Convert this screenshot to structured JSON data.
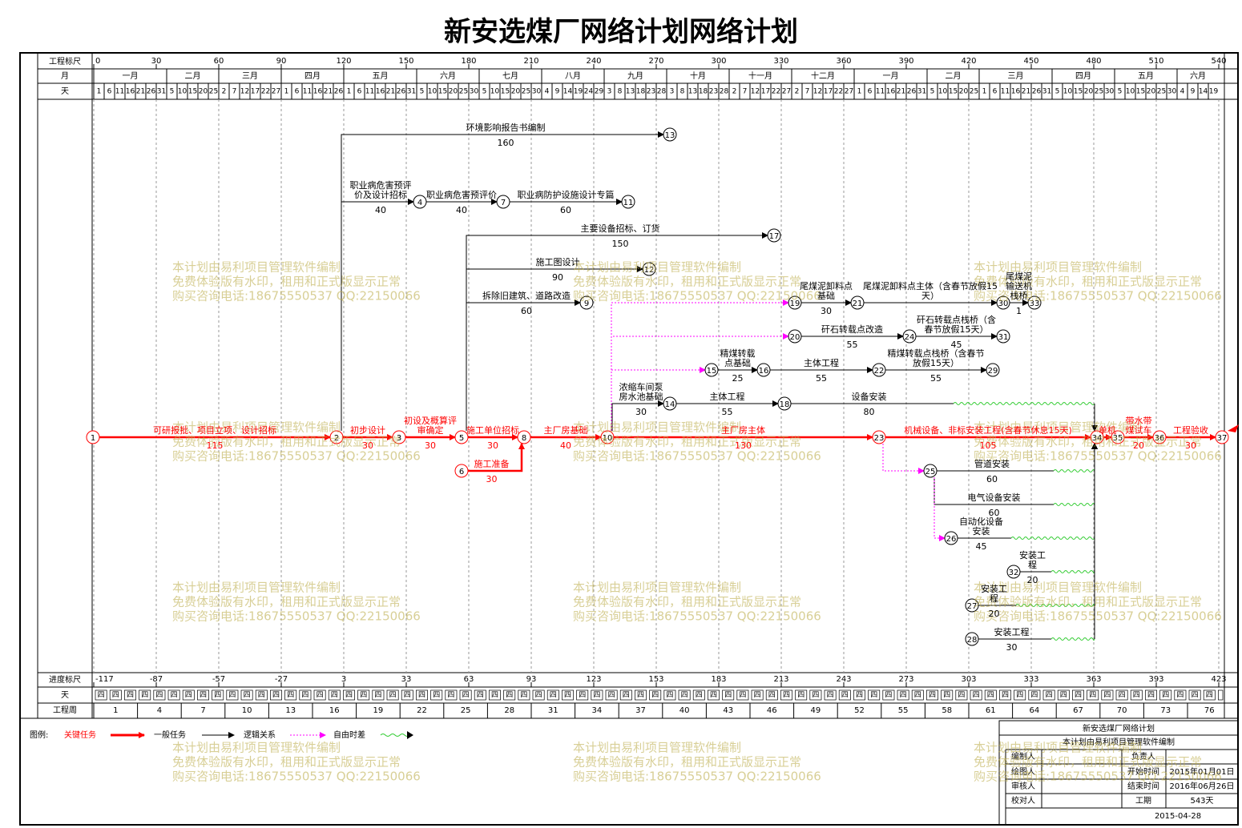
{
  "title": "新安选煤厂网络计划网络计划",
  "row_labels": {
    "scale": "工程标尺",
    "month": "月",
    "day": "天",
    "progress": "进度标尺",
    "weekday": "天",
    "week": "工程周"
  },
  "scale_ticks": [
    0,
    30,
    60,
    90,
    120,
    150,
    180,
    210,
    240,
    270,
    300,
    330,
    360,
    390,
    420,
    450,
    480,
    510,
    540
  ],
  "months": [
    {
      "name": "一月",
      "days": [
        1,
        6,
        11,
        16,
        21,
        26,
        31
      ]
    },
    {
      "name": "二月",
      "days": [
        5,
        10,
        15,
        20,
        25
      ]
    },
    {
      "name": "三月",
      "days": [
        2,
        7,
        12,
        17,
        22,
        27
      ]
    },
    {
      "name": "四月",
      "days": [
        1,
        6,
        11,
        16,
        21,
        26
      ]
    },
    {
      "name": "五月",
      "days": [
        1,
        6,
        11,
        16,
        21,
        26,
        31
      ]
    },
    {
      "name": "六月",
      "days": [
        5,
        10,
        15,
        20,
        25,
        30
      ]
    },
    {
      "name": "七月",
      "days": [
        5,
        10,
        15,
        20,
        25,
        30
      ]
    },
    {
      "name": "八月",
      "days": [
        4,
        9,
        14,
        19,
        24,
        29
      ]
    },
    {
      "name": "九月",
      "days": [
        3,
        8,
        13,
        18,
        23,
        28
      ]
    },
    {
      "name": "十月",
      "days": [
        3,
        8,
        13,
        18,
        23,
        28
      ]
    },
    {
      "name": "十一月",
      "days": [
        2,
        7,
        12,
        17,
        22,
        27
      ]
    },
    {
      "name": "十二月",
      "days": [
        2,
        7,
        12,
        17,
        22,
        27
      ]
    },
    {
      "name": "一月",
      "days": [
        1,
        6,
        11,
        16,
        21,
        26,
        31
      ]
    },
    {
      "name": "二月",
      "days": [
        5,
        10,
        15,
        20,
        25
      ]
    },
    {
      "name": "三月",
      "days": [
        1,
        6,
        11,
        16,
        21,
        26,
        31
      ]
    },
    {
      "name": "四月",
      "days": [
        5,
        10,
        15,
        20,
        25,
        30
      ]
    },
    {
      "name": "五月",
      "days": [
        5,
        10,
        15,
        20,
        25,
        30
      ]
    },
    {
      "name": "六月",
      "days": [
        4,
        9,
        14,
        19
      ]
    }
  ],
  "progress_ticks": [
    -117,
    -87,
    -57,
    -27,
    3,
    33,
    63,
    93,
    123,
    153,
    183,
    213,
    243,
    273,
    303,
    333,
    363,
    393,
    423
  ],
  "weekday_label": "四",
  "weeks": [
    1,
    4,
    7,
    10,
    13,
    16,
    19,
    22,
    25,
    28,
    31,
    34,
    37,
    40,
    43,
    46,
    49,
    52,
    55,
    58,
    61,
    64,
    67,
    70,
    73,
    76
  ],
  "nodes": [
    "1",
    "2",
    "3",
    "5",
    "8",
    "10",
    "23",
    "34",
    "35",
    "36",
    "37",
    "6",
    "13",
    "4",
    "7",
    "11",
    "17",
    "12",
    "9",
    "19",
    "21",
    "30",
    "33",
    "20",
    "24",
    "31",
    "15",
    "16",
    "22",
    "29",
    "14",
    "18",
    "25",
    "26",
    "32",
    "27",
    "28"
  ],
  "activities": [
    {
      "from": "1",
      "to": "2",
      "name": "可研报批、项目立项、设计招标",
      "duration": 115,
      "critical": true
    },
    {
      "from": "2",
      "to": "3",
      "name": "初步设计",
      "duration": 30,
      "critical": true
    },
    {
      "from": "3",
      "to": "5",
      "name": "初设及概算评审确定",
      "duration": 30,
      "critical": true
    },
    {
      "from": "5",
      "to": "8",
      "name": "施工单位招标",
      "duration": 30,
      "critical": true
    },
    {
      "from": "6",
      "to": "8",
      "name": "施工准备",
      "duration": 30,
      "critical": true
    },
    {
      "from": "8",
      "to": "10",
      "name": "主厂房基础",
      "duration": 40,
      "critical": true
    },
    {
      "from": "10",
      "to": "23",
      "name": "主厂房主体",
      "duration": 130,
      "critical": true
    },
    {
      "from": "23",
      "to": "34",
      "name": "机械设备、非标安装工程(含春节休息15天)",
      "duration": 105,
      "critical": true
    },
    {
      "from": "34",
      "to": "35",
      "name": "单机",
      "critical": true
    },
    {
      "from": "35",
      "to": "36",
      "name": "带水带煤试车",
      "duration": 20,
      "critical": true
    },
    {
      "from": "36",
      "to": "37",
      "name": "工程验收",
      "duration": 30,
      "critical": true
    },
    {
      "from": "2",
      "to": "13",
      "name": "环境影响报告书编制",
      "duration": 160,
      "critical": false
    },
    {
      "from": "2",
      "to": "4",
      "name": "职业病危害预评价及设计招标",
      "duration": 40,
      "critical": false
    },
    {
      "from": "4",
      "to": "7",
      "name": "职业病危害预评价",
      "duration": 40,
      "critical": false
    },
    {
      "from": "7",
      "to": "11",
      "name": "职业病防护设施设计专篇",
      "duration": 60,
      "critical": false
    },
    {
      "from": "5",
      "to": "17",
      "name": "主要设备招标、订货",
      "duration": 150,
      "critical": false
    },
    {
      "from": "5",
      "to": "12",
      "name": "施工图设计",
      "duration": 90,
      "critical": false
    },
    {
      "from": "5",
      "to": "9",
      "name": "拆除旧建筑、道路改造",
      "duration": 60,
      "critical": false
    },
    {
      "from": "19",
      "to": "21",
      "name": "尾煤泥卸料点基础",
      "duration": 30,
      "critical": false
    },
    {
      "from": "21",
      "to": "30",
      "name": "尾煤泥卸料点主体（含春节放假15天）",
      "critical": false
    },
    {
      "from": "30",
      "to": "33",
      "name": "尾煤泥输送机栈桥",
      "duration": 1,
      "critical": false
    },
    {
      "from": "20",
      "to": "24",
      "name": "矸石转载点改造",
      "duration": 55,
      "critical": false
    },
    {
      "from": "24",
      "to": "31",
      "name": "矸石转载点栈桥（含春节放假15天）",
      "duration": 45,
      "critical": false
    },
    {
      "from": "15",
      "to": "16",
      "name": "精煤转载点基础",
      "duration": 25,
      "critical": false
    },
    {
      "from": "16",
      "to": "22",
      "name": "主体工程",
      "duration": 55,
      "critical": false
    },
    {
      "from": "22",
      "to": "29",
      "name": "精煤转载点栈桥（含春节放假15天）",
      "duration": 55,
      "critical": false
    },
    {
      "from": "10",
      "to": "14",
      "name": "浓缩车间泵房水池基础",
      "duration": 30,
      "critical": false
    },
    {
      "from": "14",
      "to": "18",
      "name": "主体工程",
      "duration": 55,
      "critical": false
    },
    {
      "from": "18",
      "to": "34",
      "name": "设备安装",
      "duration": 80,
      "critical": false
    },
    {
      "from": "25",
      "to": "34",
      "name": "管道安装",
      "duration": 60,
      "critical": false
    },
    {
      "from": "25",
      "to": "34",
      "name": "电气设备安装",
      "duration": 60,
      "critical": false
    },
    {
      "from": "26",
      "to": "34",
      "name": "自动化设备安装",
      "duration": 45,
      "critical": false
    },
    {
      "from": "32",
      "to": "34",
      "name": "安装工程",
      "duration": 20,
      "critical": false
    },
    {
      "from": "27",
      "to": "34",
      "name": "安装工程",
      "duration": 20,
      "critical": false
    },
    {
      "from": "28",
      "to": "34",
      "name": "安装工程",
      "duration": 30,
      "critical": false
    }
  ],
  "links": [
    {
      "from": "10",
      "to": "19"
    },
    {
      "from": "10",
      "to": "20"
    },
    {
      "from": "10",
      "to": "15"
    },
    {
      "from": "23",
      "to": "25"
    },
    {
      "from": "25",
      "to": "26"
    }
  ],
  "legend": {
    "title": "图例:",
    "critical": "关键任务",
    "normal": "一般任务",
    "logic": "逻辑关系",
    "float": "自由时差"
  },
  "watermark": [
    "本计划由易利项目管理软件编制",
    "免费体验版有水印，租用和正式版显示正常",
    "购买咨询电话:18675550537 QQ:22150066"
  ],
  "title_block": {
    "name": "新安选煤厂网络计划",
    "software": "本计划由易利项目管理软件编制",
    "rows": [
      {
        "label": "编制人",
        "field": "负责人"
      },
      {
        "label": "绘图人",
        "field": "开始时间",
        "value": "2015年01月01日"
      },
      {
        "label": "审核人",
        "field": "结束时间",
        "value": "2016年06月26日"
      },
      {
        "label": "校对人",
        "field": "工期",
        "value": "543天"
      }
    ],
    "date": "2015-04-28"
  }
}
